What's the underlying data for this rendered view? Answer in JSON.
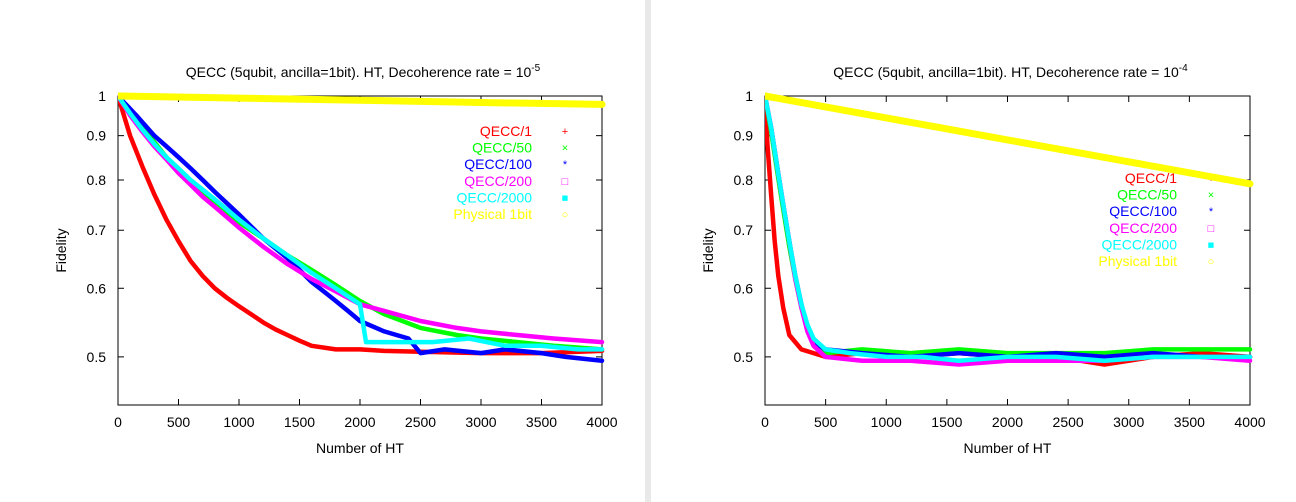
{
  "chart_data": [
    {
      "type": "line",
      "title": "QECC (5qubit, ancilla=1bit). HT, Decoherence rate = 10",
      "title_exponent": "-5",
      "xlabel": "Number of HT",
      "ylabel": "Fidelity",
      "xlim": [
        0,
        4000
      ],
      "ylim": [
        0.44,
        1.0
      ],
      "yscale": "log",
      "xticks": [
        "0",
        "500",
        "1000",
        "1500",
        "2000",
        "2500",
        "3000",
        "3500",
        "4000"
      ],
      "yticks": [
        "0.5",
        "0.6",
        "0.7",
        "0.8",
        "0.9",
        "1"
      ],
      "legend_position": "top-right",
      "grid": false,
      "series": [
        {
          "name": "QECC/1",
          "marker": "+",
          "color": "#ff0000",
          "x": [
            0,
            100,
            200,
            300,
            400,
            500,
            600,
            700,
            800,
            900,
            1000,
            1100,
            1200,
            1300,
            1400,
            1500,
            1600,
            1800,
            2000,
            2200,
            2500,
            3000,
            3500,
            4000
          ],
          "y": [
            1.0,
            0.9,
            0.83,
            0.77,
            0.72,
            0.68,
            0.645,
            0.62,
            0.6,
            0.585,
            0.572,
            0.56,
            0.548,
            0.538,
            0.53,
            0.522,
            0.515,
            0.51,
            0.51,
            0.508,
            0.507,
            0.505,
            0.505,
            0.508
          ]
        },
        {
          "name": "QECC/50",
          "marker": "×",
          "color": "#00ff00",
          "x": [
            0,
            100,
            200,
            300,
            400,
            500,
            600,
            800,
            1000,
            1200,
            1400,
            1600,
            1800,
            2000,
            2200,
            2500,
            2800,
            3000,
            3300,
            3600,
            4000
          ],
          "y": [
            1.0,
            0.96,
            0.92,
            0.885,
            0.85,
            0.82,
            0.795,
            0.75,
            0.715,
            0.685,
            0.655,
            0.63,
            0.605,
            0.58,
            0.56,
            0.54,
            0.53,
            0.525,
            0.52,
            0.515,
            0.51
          ]
        },
        {
          "name": "QECC/100",
          "marker": "*",
          "color": "#0000ff",
          "x": [
            0,
            150,
            300,
            400,
            500,
            600,
            700,
            800,
            1000,
            1200,
            1400,
            1500,
            1600,
            1700,
            1800,
            1900,
            2000,
            2200,
            2400,
            2500,
            2700,
            3000,
            3200,
            3500,
            3700,
            4000
          ],
          "y": [
            1.0,
            0.95,
            0.9,
            0.875,
            0.85,
            0.825,
            0.8,
            0.775,
            0.73,
            0.685,
            0.65,
            0.63,
            0.61,
            0.595,
            0.58,
            0.565,
            0.55,
            0.535,
            0.525,
            0.505,
            0.51,
            0.505,
            0.51,
            0.505,
            0.5,
            0.495
          ]
        },
        {
          "name": "QECC/200",
          "marker": "□",
          "color": "#ff00ff",
          "x": [
            0,
            100,
            200,
            300,
            400,
            500,
            600,
            700,
            800,
            1000,
            1200,
            1400,
            1600,
            1800,
            2000,
            2200,
            2500,
            2800,
            3000,
            3300,
            3600,
            4000
          ],
          "y": [
            1.0,
            0.95,
            0.91,
            0.875,
            0.845,
            0.815,
            0.79,
            0.765,
            0.745,
            0.705,
            0.67,
            0.64,
            0.615,
            0.595,
            0.575,
            0.565,
            0.55,
            0.54,
            0.535,
            0.53,
            0.525,
            0.52
          ]
        },
        {
          "name": "QECC/2000",
          "marker": "■",
          "color": "#00ffff",
          "x": [
            0,
            100,
            200,
            300,
            400,
            500,
            600,
            800,
            1000,
            1200,
            1400,
            1600,
            1800,
            2000,
            2050,
            2300,
            2600,
            2900,
            3200,
            3500,
            3800,
            4000
          ],
          "y": [
            1.0,
            0.955,
            0.915,
            0.88,
            0.85,
            0.825,
            0.8,
            0.76,
            0.72,
            0.685,
            0.655,
            0.625,
            0.6,
            0.575,
            0.52,
            0.52,
            0.52,
            0.525,
            0.515,
            0.515,
            0.51,
            0.51
          ]
        },
        {
          "name": "Physical 1bit",
          "marker": "○",
          "color": "#ffff00",
          "x": [
            0,
            1000,
            2000,
            3000,
            4000
          ],
          "y": [
            1.0,
            0.9945,
            0.989,
            0.983,
            0.978
          ]
        }
      ]
    },
    {
      "type": "line",
      "title": "QECC (5qubit, ancilla=1bit). HT, Decoherence rate = 10",
      "title_exponent": "-4",
      "xlabel": "Number of HT",
      "ylabel": "Fidelity",
      "xlim": [
        0,
        4000
      ],
      "ylim": [
        0.44,
        1.0
      ],
      "yscale": "log",
      "xticks": [
        "0",
        "500",
        "1000",
        "1500",
        "2000",
        "2500",
        "3000",
        "3500",
        "4000"
      ],
      "yticks": [
        "0.5",
        "0.6",
        "0.7",
        "0.8",
        "0.9",
        "1"
      ],
      "legend_position": "center-right",
      "grid": false,
      "series": [
        {
          "name": "QECC/1",
          "marker": "+",
          "color": "#ff0000",
          "x": [
            0,
            20,
            50,
            80,
            110,
            150,
            200,
            300,
            500,
            800,
            1200,
            1600,
            2000,
            2400,
            2800,
            3200,
            3600,
            4000
          ],
          "y": [
            1.0,
            0.88,
            0.77,
            0.68,
            0.62,
            0.57,
            0.53,
            0.51,
            0.5,
            0.505,
            0.5,
            0.505,
            0.5,
            0.5,
            0.49,
            0.5,
            0.505,
            0.5
          ]
        },
        {
          "name": "QECC/50",
          "marker": "×",
          "color": "#00ff00",
          "x": [
            0,
            50,
            100,
            150,
            200,
            250,
            300,
            350,
            400,
            500,
            800,
            1200,
            1600,
            2000,
            2400,
            2800,
            3200,
            3600,
            4000
          ],
          "y": [
            1.0,
            0.91,
            0.82,
            0.74,
            0.67,
            0.615,
            0.57,
            0.54,
            0.52,
            0.505,
            0.51,
            0.505,
            0.51,
            0.505,
            0.505,
            0.505,
            0.51,
            0.51,
            0.51
          ]
        },
        {
          "name": "QECC/100",
          "marker": "*",
          "color": "#0000ff",
          "x": [
            0,
            50,
            100,
            150,
            200,
            250,
            300,
            350,
            400,
            500,
            800,
            1200,
            1600,
            2000,
            2400,
            2800,
            3200,
            3600,
            4000
          ],
          "y": [
            1.0,
            0.92,
            0.83,
            0.75,
            0.68,
            0.62,
            0.575,
            0.54,
            0.52,
            0.51,
            0.505,
            0.5,
            0.505,
            0.5,
            0.505,
            0.5,
            0.505,
            0.5,
            0.5
          ]
        },
        {
          "name": "QECC/200",
          "marker": "□",
          "color": "#ff00ff",
          "x": [
            0,
            50,
            100,
            150,
            200,
            250,
            300,
            350,
            400,
            500,
            800,
            1200,
            1600,
            2000,
            2400,
            2800,
            3200,
            3600,
            4000
          ],
          "y": [
            1.0,
            0.92,
            0.83,
            0.75,
            0.68,
            0.615,
            0.57,
            0.535,
            0.515,
            0.5,
            0.495,
            0.495,
            0.49,
            0.495,
            0.495,
            0.495,
            0.5,
            0.5,
            0.495
          ]
        },
        {
          "name": "QECC/2000",
          "marker": "■",
          "color": "#00ffff",
          "x": [
            0,
            50,
            100,
            150,
            200,
            250,
            300,
            350,
            400,
            500,
            700,
            1000,
            1300,
            1600,
            2000,
            2400,
            2800,
            3200,
            3600,
            4000
          ],
          "y": [
            1.0,
            0.92,
            0.83,
            0.75,
            0.68,
            0.62,
            0.575,
            0.545,
            0.525,
            0.51,
            0.505,
            0.5,
            0.5,
            0.495,
            0.5,
            0.5,
            0.495,
            0.5,
            0.5,
            0.5
          ]
        },
        {
          "name": "Physical 1bit",
          "marker": "○",
          "color": "#ffff00",
          "x": [
            0,
            1000,
            2000,
            3000,
            4000
          ],
          "y": [
            1.0,
            0.9435,
            0.89,
            0.8395,
            0.792
          ]
        }
      ]
    }
  ]
}
